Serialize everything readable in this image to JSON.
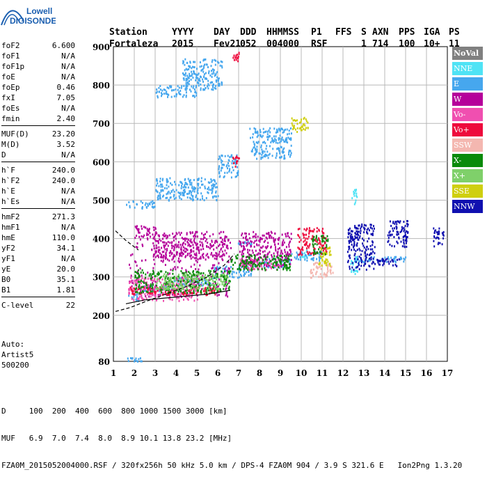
{
  "logo": {
    "line1": "Lowell",
    "line2": "DIGISONDE"
  },
  "header": {
    "col_labels": [
      "Station",
      "YYYY",
      "DAY",
      "DDD",
      "HHMMSS",
      "P1",
      "FFS",
      "S",
      "AXN",
      "PPS",
      "IGA",
      "PS"
    ],
    "col_values": [
      "Fortaleza",
      "2015",
      "Fev21",
      "052",
      "004000",
      "RSF",
      "",
      "1",
      "714",
      "100",
      "10+",
      "11"
    ]
  },
  "params": [
    {
      "label": "foF2",
      "value": "6.600"
    },
    {
      "label": "foF1",
      "value": "N/A"
    },
    {
      "label": "foF1p",
      "value": "N/A"
    },
    {
      "label": "foE",
      "value": "N/A"
    },
    {
      "label": "foEp",
      "value": "0.46"
    },
    {
      "label": "fxI",
      "value": "7.05"
    },
    {
      "label": "foEs",
      "value": "N/A"
    },
    {
      "label": "fmin",
      "value": "2.40"
    },
    {
      "sep": true
    },
    {
      "label": "MUF(D)",
      "value": "23.20"
    },
    {
      "label": "M(D)",
      "value": "3.52"
    },
    {
      "label": "D",
      "value": "N/A"
    },
    {
      "sep": true
    },
    {
      "label": "h`F",
      "value": "240.0"
    },
    {
      "label": "h`F2",
      "value": "240.0"
    },
    {
      "label": "h`E",
      "value": "N/A"
    },
    {
      "label": "h`Es",
      "value": "N/A"
    },
    {
      "sep": true
    },
    {
      "label": "hmF2",
      "value": "271.3"
    },
    {
      "label": "hmF1",
      "value": "N/A"
    },
    {
      "label": "hmE",
      "value": "110.0"
    },
    {
      "label": "yF2",
      "value": "34.1"
    },
    {
      "label": "yF1",
      "value": "N/A"
    },
    {
      "label": "yE",
      "value": "20.0"
    },
    {
      "label": "B0",
      "value": "35.1"
    },
    {
      "label": "B1",
      "value": "1.81"
    },
    {
      "sep": true
    },
    {
      "label": "C-level",
      "value": "22"
    }
  ],
  "auto": {
    "line1": "Auto:",
    "line2": "Artist5",
    "line3": "500200"
  },
  "legend": [
    {
      "label": "NoVal",
      "bg": "#808080",
      "fg": "#ffffff",
      "bold": true
    },
    {
      "label": "NNE",
      "bg": "#4fe3f5",
      "fg": "#ffffff"
    },
    {
      "label": "E",
      "bg": "#46a7ee",
      "fg": "#ffffff"
    },
    {
      "label": "W",
      "bg": "#b5009a",
      "fg": "#ffffff"
    },
    {
      "label": "Vo-",
      "bg": "#f04fb0",
      "fg": "#ffffff"
    },
    {
      "label": "Vo+",
      "bg": "#ee0a3c",
      "fg": "#ffffff"
    },
    {
      "label": "SSW",
      "bg": "#f4b7b0",
      "fg": "#ffffff"
    },
    {
      "label": "X-",
      "bg": "#0a8a0a",
      "fg": "#ffffff"
    },
    {
      "label": "X+",
      "bg": "#7fd06a",
      "fg": "#ffffff"
    },
    {
      "label": "SSE",
      "bg": "#cfcf10",
      "fg": "#ffffff"
    },
    {
      "label": "NNW",
      "bg": "#1010b0",
      "fg": "#ffffff"
    }
  ],
  "footer": {
    "line1": "D     100  200  400  600  800 1000 1500 3000 [km]",
    "line2": "MUF   6.9  7.0  7.4  8.0  8.9 10.1 13.8 23.2 [MHz]",
    "line3": "FZA0M_2015052004000.RSF / 320fx256h 50 kHz 5.0 km / DPS-4 FZA0M 904 / 3.9 S 321.6 E   Ion2Png 1.3.20"
  },
  "chart_data": {
    "type": "scatter",
    "title": "",
    "xlabel": "",
    "ylabel": "",
    "xlim": [
      1,
      17
    ],
    "ylim": [
      80,
      900
    ],
    "x_ticks": [
      1,
      2,
      3,
      4,
      5,
      6,
      7,
      8,
      9,
      10,
      11,
      12,
      13,
      14,
      15,
      16,
      17
    ],
    "y_ticks": [
      80,
      200,
      300,
      400,
      500,
      600,
      700,
      800,
      900
    ],
    "grid": true,
    "legend_position": "right",
    "series": [
      {
        "name": "NNE",
        "color": "#4fe3f5",
        "clusters": [
          {
            "x": [
              12.3,
              12.7
            ],
            "y": [
              310,
              360
            ]
          },
          {
            "x": [
              12.4,
              12.7
            ],
            "y": [
              490,
              530
            ]
          },
          {
            "x": [
              9.9,
              10.4
            ],
            "y": [
              350,
              380
            ]
          }
        ]
      },
      {
        "name": "E",
        "color": "#46a7ee",
        "clusters": [
          {
            "x": [
              1.7,
              2.3
            ],
            "y": [
              240,
              260
            ]
          },
          {
            "x": [
              2.3,
              3.8
            ],
            "y": [
              265,
              280
            ]
          },
          {
            "x": [
              3.8,
              5.8
            ],
            "y": [
              280,
              300
            ]
          },
          {
            "x": [
              5.8,
              7.6
            ],
            "y": [
              300,
              330
            ]
          },
          {
            "x": [
              7.6,
              9.5
            ],
            "y": [
              325,
              350
            ]
          },
          {
            "x": [
              9.5,
              11.0
            ],
            "y": [
              345,
              370
            ]
          },
          {
            "x": [
              6.9,
              7.6
            ],
            "y": [
              385,
              395
            ]
          },
          {
            "x": [
              1.6,
              3.0
            ],
            "y": [
              480,
              500
            ]
          },
          {
            "x": [
              3.0,
              6.0
            ],
            "y": [
              500,
              560
            ]
          },
          {
            "x": [
              6.0,
              7.0
            ],
            "y": [
              560,
              620
            ]
          },
          {
            "x": [
              7.5,
              9.5
            ],
            "y": [
              610,
              690
            ]
          },
          {
            "x": [
              3.0,
              5.0
            ],
            "y": [
              770,
              800
            ]
          },
          {
            "x": [
              4.3,
              6.2
            ],
            "y": [
              790,
              870
            ]
          },
          {
            "x": [
              1.6,
              2.4
            ],
            "y": [
              82,
              92
            ]
          },
          {
            "x": [
              12.5,
              15.0
            ],
            "y": [
              340,
              355
            ]
          }
        ]
      },
      {
        "name": "W",
        "color": "#b5009a",
        "clusters": [
          {
            "x": [
              1.7,
              6.6
            ],
            "y": [
              250,
              400
            ]
          },
          {
            "x": [
              2.8,
              6.4
            ],
            "y": [
              350,
              420
            ]
          },
          {
            "x": [
              7.0,
              9.5
            ],
            "y": [
              330,
              420
            ]
          },
          {
            "x": [
              2.0,
              3.0
            ],
            "y": [
              400,
              435
            ]
          }
        ]
      },
      {
        "name": "Vo-",
        "color": "#f04fb0",
        "clusters": [
          {
            "x": [
              1.7,
              5.0
            ],
            "y": [
              240,
              300
            ]
          },
          {
            "x": [
              7.0,
              9.0
            ],
            "y": [
              320,
              350
            ]
          }
        ]
      },
      {
        "name": "Vo+",
        "color": "#ee0a3c",
        "clusters": [
          {
            "x": [
              1.7,
              6.0
            ],
            "y": [
              255,
              275
            ]
          },
          {
            "x": [
              9.8,
              11.2
            ],
            "y": [
              360,
              430
            ]
          },
          {
            "x": [
              6.7,
              7.0
            ],
            "y": [
              590,
              620
            ]
          },
          {
            "x": [
              6.7,
              7.0
            ],
            "y": [
              860,
              890
            ]
          }
        ]
      },
      {
        "name": "SSW",
        "color": "#f4b7b0",
        "clusters": [
          {
            "x": [
              10.4,
              11.5
            ],
            "y": [
              300,
              340
            ]
          }
        ]
      },
      {
        "name": "X-",
        "color": "#0a8a0a",
        "clusters": [
          {
            "x": [
              2.0,
              6.6
            ],
            "y": [
              260,
              320
            ]
          },
          {
            "x": [
              6.6,
              9.5
            ],
            "y": [
              320,
              360
            ]
          },
          {
            "x": [
              10.5,
              11.3
            ],
            "y": [
              360,
              410
            ]
          }
        ]
      },
      {
        "name": "X+",
        "color": "#7fd06a",
        "clusters": [
          {
            "x": [
              3.0,
              6.5
            ],
            "y": [
              270,
              310
            ]
          }
        ]
      },
      {
        "name": "SSE",
        "color": "#cfcf10",
        "clusters": [
          {
            "x": [
              10.8,
              11.4
            ],
            "y": [
              330,
              380
            ]
          },
          {
            "x": [
              9.5,
              10.3
            ],
            "y": [
              680,
              720
            ]
          }
        ]
      },
      {
        "name": "NNW",
        "color": "#1010b0",
        "clusters": [
          {
            "x": [
              12.2,
              13.5
            ],
            "y": [
              320,
              440
            ]
          },
          {
            "x": [
              13.3,
              14.8
            ],
            "y": [
              330,
              350
            ]
          },
          {
            "x": [
              14.1,
              15.1
            ],
            "y": [
              380,
              450
            ]
          },
          {
            "x": [
              16.3,
              16.8
            ],
            "y": [
              380,
              430
            ]
          }
        ]
      }
    ],
    "curves": [
      {
        "name": "profile-dashed",
        "style": "dashed",
        "x": [
          1.1,
          1.8,
          2.5,
          3.5,
          4.5,
          5.5,
          6.3,
          6.8
        ],
        "y": [
          210,
          220,
          235,
          255,
          275,
          300,
          330,
          360
        ]
      },
      {
        "name": "profile-upper-dashed",
        "style": "dashed",
        "x": [
          1.1,
          1.6,
          2.2
        ],
        "y": [
          420,
          395,
          370
        ]
      },
      {
        "name": "profile-solid",
        "style": "solid",
        "x": [
          1.6,
          2.5,
          3.5,
          4.5,
          5.5,
          6.6
        ],
        "y": [
          230,
          240,
          245,
          250,
          255,
          265
        ]
      }
    ]
  }
}
